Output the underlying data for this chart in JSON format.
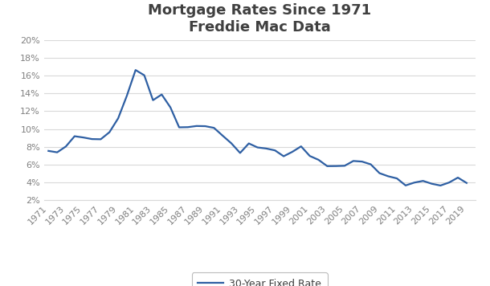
{
  "title_line1": "Mortgage Rates Since 1971",
  "title_line2": "Freddie Mac Data",
  "legend_label": "30-Year Fixed Rate",
  "line_color": "#2E5FA3",
  "background_color": "#ffffff",
  "years": [
    1971,
    1972,
    1973,
    1974,
    1975,
    1976,
    1977,
    1978,
    1979,
    1980,
    1981,
    1982,
    1983,
    1984,
    1985,
    1986,
    1987,
    1988,
    1989,
    1990,
    1991,
    1992,
    1993,
    1994,
    1995,
    1996,
    1997,
    1998,
    1999,
    2000,
    2001,
    2002,
    2003,
    2004,
    2005,
    2006,
    2007,
    2008,
    2009,
    2010,
    2011,
    2012,
    2013,
    2014,
    2015,
    2016,
    2017,
    2018,
    2019
  ],
  "rates": [
    7.54,
    7.38,
    8.04,
    9.19,
    9.05,
    8.87,
    8.85,
    9.64,
    11.2,
    13.74,
    16.63,
    16.04,
    13.24,
    13.88,
    12.43,
    10.19,
    10.21,
    10.34,
    10.32,
    10.13,
    9.25,
    8.39,
    7.31,
    8.38,
    7.93,
    7.81,
    7.6,
    6.94,
    7.44,
    8.05,
    6.97,
    6.54,
    5.83,
    5.84,
    5.87,
    6.41,
    6.34,
    6.03,
    5.04,
    4.69,
    4.45,
    3.66,
    3.98,
    4.17,
    3.85,
    3.65,
    3.99,
    4.54,
    3.94
  ],
  "ylim": [
    2,
    20
  ],
  "yticks": [
    2,
    4,
    6,
    8,
    10,
    12,
    14,
    16,
    18,
    20
  ],
  "ytick_labels": [
    "2%",
    "4%",
    "6%",
    "8%",
    "10%",
    "12%",
    "14%",
    "16%",
    "18%",
    "20%"
  ],
  "xticks": [
    1971,
    1973,
    1975,
    1977,
    1979,
    1981,
    1983,
    1985,
    1987,
    1989,
    1991,
    1993,
    1995,
    1997,
    1999,
    2001,
    2003,
    2005,
    2007,
    2009,
    2011,
    2013,
    2015,
    2017,
    2019
  ],
  "grid_color": "#d9d9d9",
  "title_fontsize": 13,
  "legend_fontsize": 9,
  "tick_fontsize": 8,
  "tick_color": "#808080",
  "line_width": 1.6,
  "xlim_left": 1970.5,
  "xlim_right": 2020.0
}
